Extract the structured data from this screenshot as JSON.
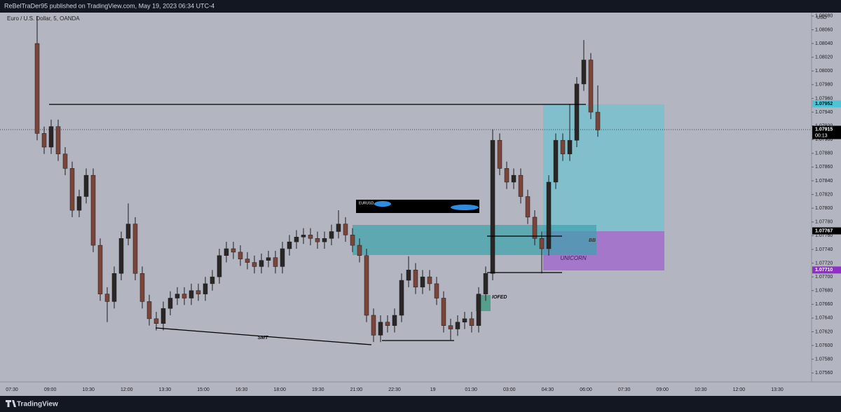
{
  "chart_data": {
    "type": "candlestick",
    "header": "ReBelTraDer95 published on TradingView.com, May 19, 2023 06:34 UTC-4",
    "title": "Euro / U.S. Dollar, 5, OANDA",
    "currency": "USD",
    "footer": "TradingView",
    "up_color": "#2b2626",
    "down_color": "#7a4538",
    "ylim": [
      1.07547,
      1.08085
    ],
    "yticks": [
      {
        "value": 1.0756,
        "label": "1.07560"
      },
      {
        "value": 1.0758,
        "label": "1.07580"
      },
      {
        "value": 1.076,
        "label": "1.07600"
      },
      {
        "value": 1.0762,
        "label": "1.07620"
      },
      {
        "value": 1.0764,
        "label": "1.07640"
      },
      {
        "value": 1.0766,
        "label": "1.07660"
      },
      {
        "value": 1.0768,
        "label": "1.07680"
      },
      {
        "value": 1.077,
        "label": "1.07700"
      },
      {
        "value": 1.0772,
        "label": "1.07720"
      },
      {
        "value": 1.0774,
        "label": "1.07740"
      },
      {
        "value": 1.0776,
        "label": "1.07760"
      },
      {
        "value": 1.0778,
        "label": "1.07780"
      },
      {
        "value": 1.078,
        "label": "1.07800"
      },
      {
        "value": 1.0782,
        "label": "1.07820"
      },
      {
        "value": 1.0784,
        "label": "1.07840"
      },
      {
        "value": 1.0786,
        "label": "1.07860"
      },
      {
        "value": 1.0788,
        "label": "1.07880"
      },
      {
        "value": 1.079,
        "label": "1.07900"
      },
      {
        "value": 1.0792,
        "label": "1.07920"
      },
      {
        "value": 1.0794,
        "label": "1.07940"
      },
      {
        "value": 1.0796,
        "label": "1.07960"
      },
      {
        "value": 1.0798,
        "label": "1.07980"
      },
      {
        "value": 1.08,
        "label": "1.08000"
      },
      {
        "value": 1.0802,
        "label": "1.08020"
      },
      {
        "value": 1.0804,
        "label": "1.08040"
      },
      {
        "value": 1.0806,
        "label": "1.08060"
      },
      {
        "value": 1.0808,
        "label": "1.08080"
      }
    ],
    "price_labels": [
      {
        "value": 1.07952,
        "label": "1.07952",
        "color": "#4fc3d6",
        "text_color": "#000000"
      },
      {
        "value": 1.07915,
        "label": "1.07915",
        "countdown": "00:13",
        "color": "#000000",
        "text_color": "#ffffff"
      },
      {
        "value": 1.07767,
        "label": "1.07767",
        "color": "#000000",
        "text_color": "#ffffff"
      },
      {
        "value": 1.0771,
        "label": "1.07710",
        "color": "#8e2fc8",
        "text_color": "#ffffff"
      }
    ],
    "time_labels": [
      "07:30",
      "09:00",
      "10:30",
      "12:00",
      "13:30",
      "15:00",
      "16:30",
      "18:00",
      "19:30",
      "21:00",
      "22:30",
      "19",
      "01:30",
      "03:00",
      "04:30",
      "06:00",
      "07:30",
      "09:00",
      "10:30",
      "12:00",
      "13:30"
    ],
    "annotations": {
      "smt": "SMT",
      "iofed": "IOFED",
      "bb": "BB",
      "unicorn": "UNICORN",
      "tooltip": "EURUSD,"
    },
    "candles": {
      "open": [
        1.0804,
        1.07909,
        1.07889,
        1.07919,
        1.07879,
        1.07858,
        1.07797,
        1.07817,
        1.07848,
        1.07746,
        1.07675,
        1.07664,
        1.07705,
        1.07756,
        1.07777,
        1.07705,
        1.07664,
        1.07639,
        1.07632,
        1.07654,
        1.07669,
        1.07675,
        1.07669,
        1.0768,
        1.07675,
        1.0769,
        1.077,
        1.07731,
        1.07741,
        1.07736,
        1.07726,
        1.07721,
        1.07715,
        1.07724,
        1.07728,
        1.07715,
        1.07741,
        1.07751,
        1.07758,
        1.07761,
        1.07756,
        1.07751,
        1.07756,
        1.07766,
        1.07777,
        1.07761,
        1.07746,
        1.07731,
        1.07644,
        1.07615,
        1.07634,
        1.07629,
        1.07644,
        1.07695,
        1.0771,
        1.07685,
        1.077,
        1.0769,
        1.07669,
        1.07629,
        1.07624,
        1.07634,
        1.07639,
        1.07629,
        1.07675,
        1.07705,
        1.07899,
        1.07858,
        1.07838,
        1.07848,
        1.07817,
        1.07787,
        1.07756,
        1.07741,
        1.07838,
        1.07899,
        1.07879,
        1.07899,
        1.07981,
        1.08016,
        1.0794
      ],
      "high": [
        1.0808,
        1.07919,
        1.07929,
        1.07929,
        1.07889,
        1.07868,
        1.07827,
        1.07858,
        1.07858,
        1.07756,
        1.07685,
        1.07715,
        1.07766,
        1.07807,
        1.07787,
        1.07715,
        1.07674,
        1.07649,
        1.07664,
        1.07679,
        1.07685,
        1.07685,
        1.0769,
        1.0769,
        1.077,
        1.0771,
        1.07741,
        1.07751,
        1.07751,
        1.07746,
        1.07736,
        1.07731,
        1.07734,
        1.07738,
        1.07738,
        1.07751,
        1.07761,
        1.07768,
        1.07771,
        1.07771,
        1.07766,
        1.07766,
        1.07776,
        1.07797,
        1.07787,
        1.07771,
        1.07756,
        1.07741,
        1.07654,
        1.07644,
        1.07644,
        1.07654,
        1.07705,
        1.0773,
        1.0772,
        1.0771,
        1.0771,
        1.077,
        1.07679,
        1.07639,
        1.07644,
        1.07649,
        1.07649,
        1.07685,
        1.07715,
        1.07915,
        1.07909,
        1.07868,
        1.07858,
        1.07858,
        1.07827,
        1.07797,
        1.07766,
        1.07848,
        1.07909,
        1.07909,
        1.07952,
        1.07991,
        1.08045,
        1.08026,
        1.07979
      ],
      "low": [
        1.07899,
        1.07879,
        1.07879,
        1.07869,
        1.07848,
        1.07787,
        1.07787,
        1.07807,
        1.07736,
        1.07665,
        1.07634,
        1.07654,
        1.07695,
        1.07746,
        1.07695,
        1.07654,
        1.07629,
        1.07622,
        1.07622,
        1.07644,
        1.07659,
        1.07659,
        1.07659,
        1.07665,
        1.07665,
        1.0768,
        1.0769,
        1.07721,
        1.07726,
        1.07716,
        1.07711,
        1.07705,
        1.07705,
        1.07714,
        1.07705,
        1.07705,
        1.07731,
        1.07741,
        1.07748,
        1.07746,
        1.07741,
        1.07741,
        1.07746,
        1.07756,
        1.07751,
        1.07736,
        1.07721,
        1.07634,
        1.07605,
        1.07605,
        1.07619,
        1.07619,
        1.07634,
        1.07685,
        1.07675,
        1.07675,
        1.0768,
        1.07659,
        1.07619,
        1.07608,
        1.07614,
        1.07624,
        1.07619,
        1.07619,
        1.07665,
        1.07695,
        1.07848,
        1.07828,
        1.07828,
        1.07807,
        1.07777,
        1.07746,
        1.07705,
        1.07731,
        1.07828,
        1.07869,
        1.07869,
        1.07889,
        1.07971,
        1.0793,
        1.07904
      ],
      "close": [
        1.07909,
        1.07889,
        1.07919,
        1.07879,
        1.07858,
        1.07797,
        1.07817,
        1.07848,
        1.07746,
        1.07675,
        1.07664,
        1.07705,
        1.07756,
        1.07777,
        1.07705,
        1.07664,
        1.07639,
        1.07632,
        1.07654,
        1.07669,
        1.07675,
        1.07669,
        1.0768,
        1.07675,
        1.0769,
        1.077,
        1.07731,
        1.07741,
        1.07736,
        1.07726,
        1.07721,
        1.07715,
        1.07724,
        1.07728,
        1.07715,
        1.07741,
        1.07751,
        1.07758,
        1.07761,
        1.07756,
        1.07751,
        1.07756,
        1.07766,
        1.07777,
        1.07761,
        1.07746,
        1.07731,
        1.07644,
        1.07615,
        1.07634,
        1.07629,
        1.07644,
        1.07695,
        1.0771,
        1.07685,
        1.077,
        1.0769,
        1.07669,
        1.07629,
        1.07624,
        1.07634,
        1.07639,
        1.07629,
        1.07675,
        1.07705,
        1.07899,
        1.07858,
        1.07838,
        1.07848,
        1.07817,
        1.07787,
        1.07756,
        1.07741,
        1.07838,
        1.07899,
        1.07879,
        1.07899,
        1.07981,
        1.08016,
        1.0794,
        1.07914
      ]
    }
  }
}
